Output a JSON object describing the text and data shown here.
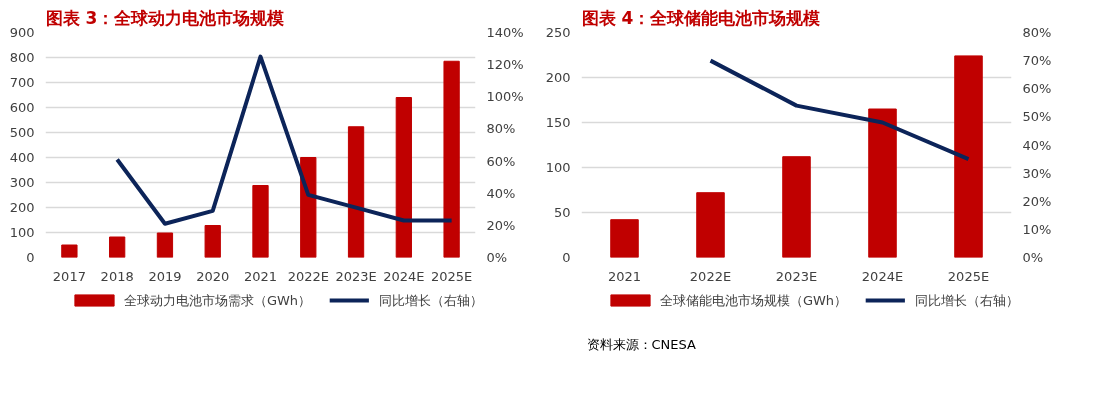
{
  "chart_data": [
    {
      "type": "bar",
      "title": "图表 3：全球动力电池市场规模",
      "categories": [
        "2017",
        "2018",
        "2019",
        "2020",
        "2021",
        "2022E",
        "2023E",
        "2024E",
        "2025E"
      ],
      "series": [
        {
          "name": "全球动力电池市场需求（GWh）",
          "color": "#c00000",
          "values": [
            50,
            82,
            98,
            128,
            288,
            400,
            523,
            640,
            785
          ]
        },
        {
          "name": "同比增长（右轴）",
          "type": "line",
          "axis": "y2",
          "color": "#0c2459",
          "values": [
            null,
            61,
            21,
            29,
            125,
            39,
            31,
            23,
            23
          ]
        }
      ],
      "ylim": [
        0,
        900
      ],
      "yticks": [
        0,
        100,
        200,
        300,
        400,
        500,
        600,
        700,
        800,
        900
      ],
      "y2lim": [
        0,
        140
      ],
      "y2ticks": [
        {
          "value": 0,
          "label": "0%"
        },
        {
          "value": 20,
          "label": "20%"
        },
        {
          "value": 40,
          "label": "40%"
        },
        {
          "value": 60,
          "label": "60%"
        },
        {
          "value": 80,
          "label": "80%"
        },
        {
          "value": 100,
          "label": "100%"
        },
        {
          "value": 120,
          "label": "120%"
        },
        {
          "value": 140,
          "label": "140%"
        }
      ],
      "grid": "y",
      "legend": "bottom",
      "marker": "none",
      "line_style": "solid"
    },
    {
      "type": "bar",
      "title": "图表 4：全球储能电池市场规模",
      "categories": [
        "2021",
        "2022E",
        "2023E",
        "2024E",
        "2025E"
      ],
      "series": [
        {
          "name": "全球储能电池市场规模（GWh）",
          "color": "#c00000",
          "values": [
            42,
            72,
            112,
            165,
            224
          ]
        },
        {
          "name": "同比增长（右轴）",
          "type": "line",
          "axis": "y2",
          "color": "#0c2459",
          "values": [
            null,
            70,
            54,
            48,
            35
          ]
        }
      ],
      "ylim": [
        0,
        250
      ],
      "yticks": [
        0,
        50,
        100,
        150,
        200,
        250
      ],
      "y2lim": [
        0,
        80
      ],
      "y2ticks": [
        {
          "value": 0,
          "label": "0%"
        },
        {
          "value": 10,
          "label": "10%"
        },
        {
          "value": 20,
          "label": "20%"
        },
        {
          "value": 30,
          "label": "30%"
        },
        {
          "value": 40,
          "label": "40%"
        },
        {
          "value": 50,
          "label": "50%"
        },
        {
          "value": 60,
          "label": "60%"
        },
        {
          "value": 70,
          "label": "70%"
        },
        {
          "value": 80,
          "label": "80%"
        }
      ],
      "grid": "y",
      "legend": "bottom",
      "marker": "none",
      "line_style": "solid",
      "annotations": [
        "资料来源：CNESA"
      ]
    }
  ]
}
